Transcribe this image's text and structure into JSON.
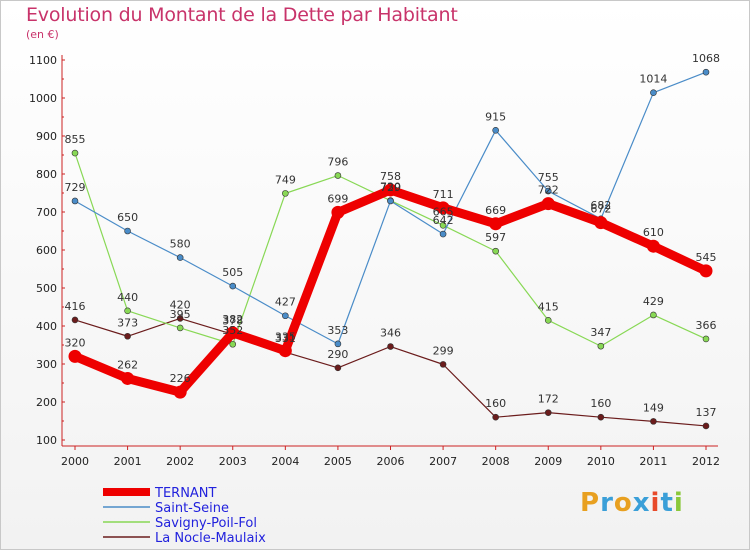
{
  "title": "Evolution du Montant de la Dette par Habitant",
  "subtitle": "(en €)",
  "logo": {
    "text": "Proxiti"
  },
  "chart_data": {
    "type": "line",
    "x": [
      "2000",
      "2001",
      "2002",
      "2003",
      "2004",
      "2005",
      "2006",
      "2007",
      "2008",
      "2009",
      "2010",
      "2011",
      "2012"
    ],
    "ylim": [
      100,
      1100
    ],
    "yticks": [
      100,
      200,
      300,
      400,
      500,
      600,
      700,
      800,
      900,
      1000,
      1100
    ],
    "grid": false,
    "legend_position": "bottom-left",
    "series": [
      {
        "name": "TERNANT",
        "color": "#ee0000",
        "values": [
          320,
          262,
          226,
          382,
          335,
          699,
          758,
          711,
          669,
          722,
          672,
          610,
          545
        ]
      },
      {
        "name": "Saint-Seine",
        "color": "#4a8cc8",
        "values": [
          729,
          650,
          580,
          505,
          427,
          353,
          729,
          642,
          915,
          755,
          682,
          1014,
          1068
        ]
      },
      {
        "name": "Savigny-Poil-Fol",
        "color": "#88d855",
        "values": [
          855,
          440,
          395,
          352,
          749,
          796,
          730,
          665,
          597,
          415,
          347,
          429,
          366
        ]
      },
      {
        "name": "La Nocle-Maulaix",
        "color": "#6b1c1c",
        "values": [
          416,
          373,
          420,
          378,
          331,
          290,
          346,
          299,
          160,
          172,
          160,
          149,
          137
        ]
      }
    ]
  }
}
